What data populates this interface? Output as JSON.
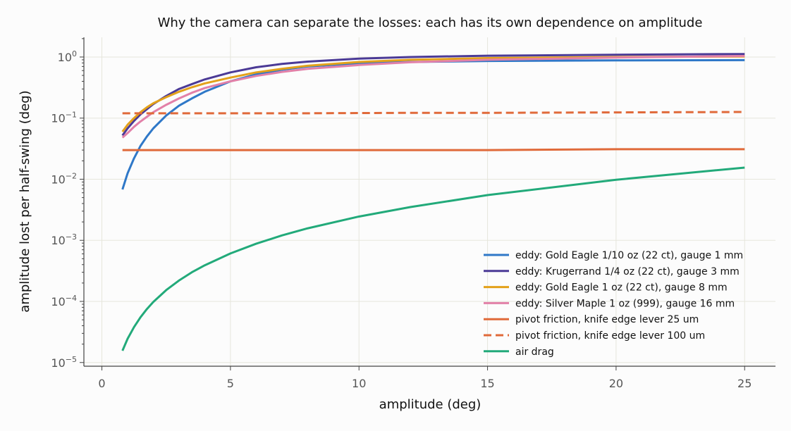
{
  "chart_data": {
    "type": "line",
    "title": "Why the camera can separate the losses: each has its own dependence on amplitude",
    "xlabel": "amplitude (deg)",
    "ylabel": "amplitude lost per half-swing (deg)",
    "xlim": [
      -0.7,
      26.2
    ],
    "ylim": [
      8.7e-06,
      2.1
    ],
    "yscale": "log",
    "grid": true,
    "legend_position": "lower-right",
    "x_ticks": [
      "0",
      "5",
      "10",
      "15",
      "20",
      "25"
    ],
    "y_ticks": [
      {
        "base": "10",
        "exp": "0"
      },
      {
        "base": "10",
        "exp": "−1"
      },
      {
        "base": "10",
        "exp": "−2"
      },
      {
        "base": "10",
        "exp": "−3"
      },
      {
        "base": "10",
        "exp": "−4"
      },
      {
        "base": "10",
        "exp": "−5"
      }
    ],
    "x": [
      0.8,
      1.0,
      1.25,
      1.5,
      1.75,
      2.0,
      2.5,
      3.0,
      3.5,
      4.0,
      5.0,
      6.0,
      7.0,
      8.0,
      10.0,
      12.0,
      15.0,
      20.0,
      25.0
    ],
    "series": [
      {
        "name": "eddy: Gold Eagle 1/10 oz (22 ct), gauge 1 mm",
        "color": "#2f78c8",
        "dash": "solid",
        "values": [
          0.0068,
          0.0125,
          0.022,
          0.035,
          0.05,
          0.068,
          0.11,
          0.16,
          0.21,
          0.27,
          0.4,
          0.52,
          0.62,
          0.7,
          0.79,
          0.83,
          0.86,
          0.88,
          0.89
        ]
      },
      {
        "name": "eddy: Krugerrand 1/4 oz (22 ct), gauge 3 mm",
        "color": "#4b3a96",
        "dash": "solid",
        "values": [
          0.052,
          0.068,
          0.09,
          0.115,
          0.14,
          0.17,
          0.23,
          0.3,
          0.36,
          0.43,
          0.56,
          0.68,
          0.77,
          0.84,
          0.94,
          1.0,
          1.05,
          1.09,
          1.12
        ]
      },
      {
        "name": "eddy: Gold Eagle 1 oz (22 ct), gauge 8 mm",
        "color": "#e3a11a",
        "dash": "solid",
        "values": [
          0.06,
          0.078,
          0.1,
          0.125,
          0.15,
          0.175,
          0.22,
          0.27,
          0.32,
          0.37,
          0.46,
          0.56,
          0.64,
          0.72,
          0.83,
          0.9,
          0.96,
          1.0,
          1.02
        ]
      },
      {
        "name": "eddy: Silver Maple 1 oz (999), gauge 16 mm",
        "color": "#e280a8",
        "dash": "solid",
        "values": [
          0.048,
          0.057,
          0.072,
          0.088,
          0.105,
          0.125,
          0.165,
          0.21,
          0.26,
          0.31,
          0.4,
          0.49,
          0.57,
          0.64,
          0.74,
          0.82,
          0.9,
          0.98,
          1.04
        ]
      },
      {
        "name": "pivot friction, knife edge lever 25 um",
        "color": "#e06a3a",
        "dash": "solid",
        "values": [
          0.03,
          0.03,
          0.03,
          0.03,
          0.03,
          0.03,
          0.03,
          0.03,
          0.03,
          0.03,
          0.03,
          0.03,
          0.03,
          0.03,
          0.03,
          0.03,
          0.03,
          0.031,
          0.031
        ]
      },
      {
        "name": "pivot friction, knife edge lever 100 um",
        "color": "#e06a3a",
        "dash": "dashed",
        "values": [
          0.12,
          0.12,
          0.12,
          0.12,
          0.12,
          0.12,
          0.12,
          0.12,
          0.12,
          0.12,
          0.12,
          0.12,
          0.12,
          0.12,
          0.121,
          0.122,
          0.122,
          0.124,
          0.126
        ]
      },
      {
        "name": "air drag",
        "color": "#22aa7a",
        "dash": "solid",
        "values": [
          1.56e-05,
          2.45e-05,
          3.8e-05,
          5.5e-05,
          7.5e-05,
          9.8e-05,
          0.000153,
          0.00022,
          0.0003,
          0.00039,
          0.00061,
          0.00088,
          0.0012,
          0.00157,
          0.00245,
          0.0035,
          0.0055,
          0.0098,
          0.0155
        ]
      }
    ]
  }
}
